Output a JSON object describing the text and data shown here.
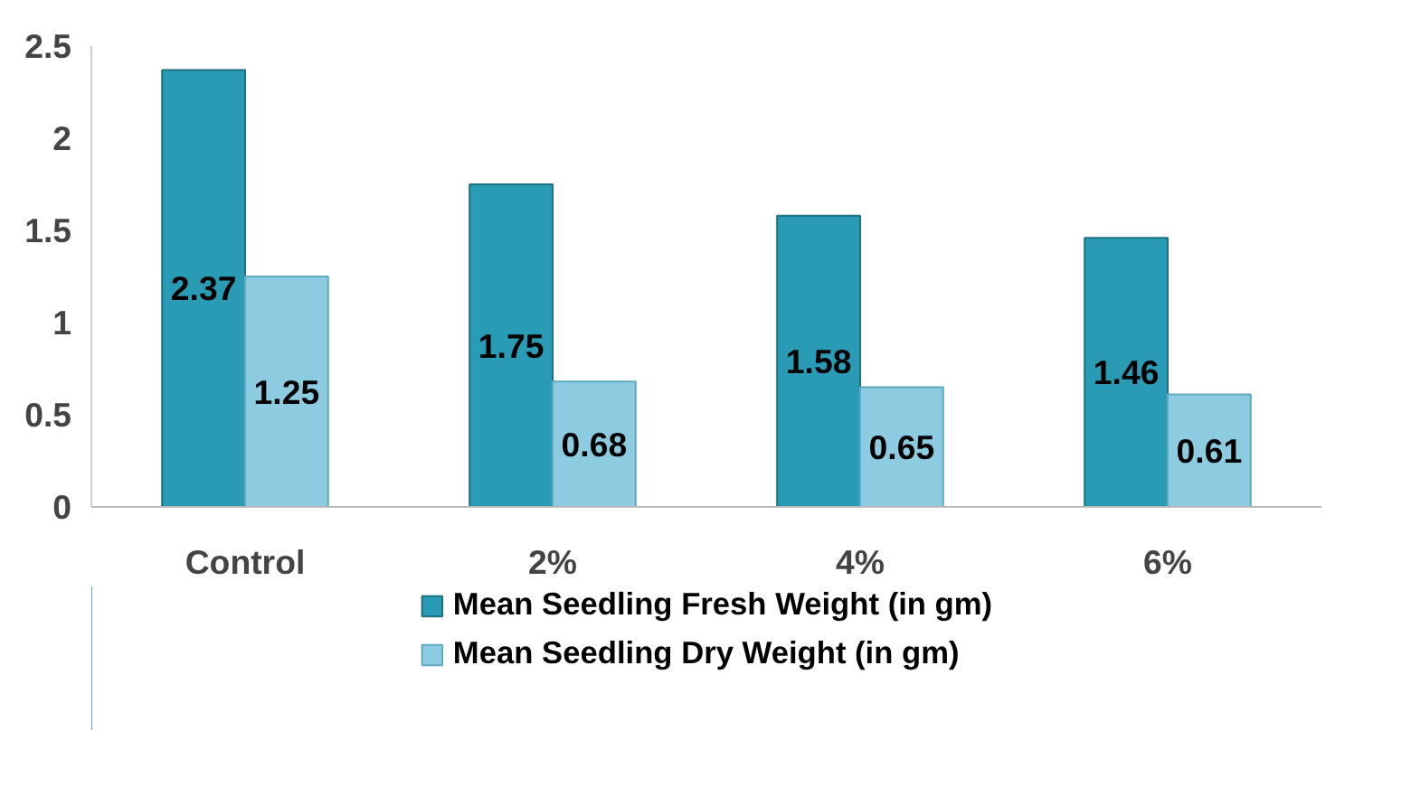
{
  "chart_data": {
    "type": "bar",
    "categories": [
      "Control",
      "2%",
      "4%",
      "6%"
    ],
    "series": [
      {
        "name": "Mean Seedling Fresh Weight (in gm)",
        "color": "#2a9bb5",
        "values": [
          2.37,
          1.75,
          1.58,
          1.46
        ]
      },
      {
        "name": "Mean Seedling Dry Weight (in gm)",
        "color": "#8ccbe0",
        "values": [
          1.25,
          0.68,
          0.65,
          0.61
        ]
      }
    ],
    "ylim": [
      0,
      2.5
    ],
    "yticks": [
      0,
      0.5,
      1,
      1.5,
      2,
      2.5
    ],
    "grid": false,
    "legend": "bottom",
    "data_labels": true
  }
}
